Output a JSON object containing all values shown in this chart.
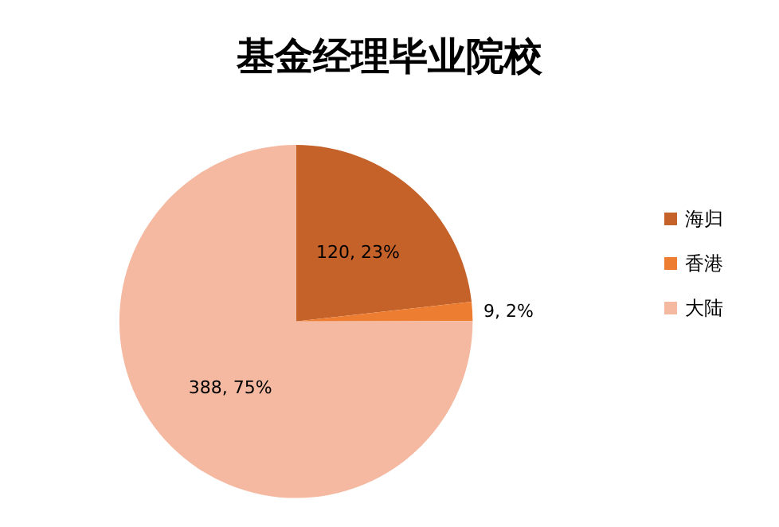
{
  "chart_data": {
    "type": "pie",
    "title": "基金经理毕业院校",
    "categories": [
      "海归",
      "香港",
      "大陆"
    ],
    "values": [
      120,
      9,
      388
    ],
    "value_labels": [
      "120, 23%",
      "9, 2%",
      "388, 75%"
    ],
    "colors": [
      "#c5622a",
      "#ed7d31",
      "#f4b9a0"
    ],
    "legend": "right"
  }
}
